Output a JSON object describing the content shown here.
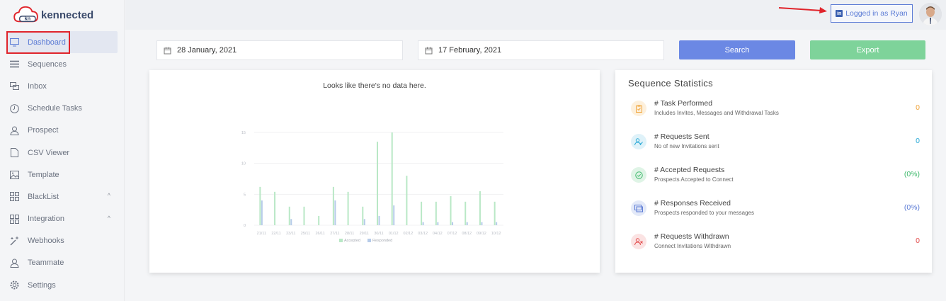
{
  "brand": {
    "name": "kennected",
    "logo_text": "kn"
  },
  "sidebar": {
    "items": [
      {
        "label": "Dashboard",
        "icon": "monitor-icon",
        "active": true
      },
      {
        "label": "Sequences",
        "icon": "list-icon"
      },
      {
        "label": "Inbox",
        "icon": "chat-icon"
      },
      {
        "label": "Schedule Tasks",
        "icon": "clock-icon"
      },
      {
        "label": "Prospect",
        "icon": "user-icon"
      },
      {
        "label": "CSV Viewer",
        "icon": "file-icon"
      },
      {
        "label": "Template",
        "icon": "image-icon"
      },
      {
        "label": "BlackList",
        "icon": "grid-icon",
        "chevron": "^"
      },
      {
        "label": "Integration",
        "icon": "grid-icon",
        "chevron": "^"
      },
      {
        "label": "Webhooks",
        "icon": "magic-icon"
      },
      {
        "label": "Teammate",
        "icon": "user-icon"
      },
      {
        "label": "Settings",
        "icon": "gear-icon"
      }
    ]
  },
  "header": {
    "login_label": "Logged in as Ryan",
    "login_icon": "in"
  },
  "filters": {
    "start_date": "28 January, 2021",
    "end_date": "17 February, 2021",
    "search_label": "Search",
    "export_label": "Export"
  },
  "chart": {
    "empty_message": "Looks like there's no data here."
  },
  "chart_data": {
    "type": "bar",
    "categories": [
      "21/11",
      "22/11",
      "23/11",
      "25/11",
      "26/11",
      "27/11",
      "28/11",
      "29/11",
      "30/11",
      "01/12",
      "02/12",
      "03/12",
      "04/12",
      "07/12",
      "08/12",
      "09/12",
      "10/12"
    ],
    "series": [
      {
        "name": "Accepted",
        "values": [
          6.2,
          5.4,
          3,
          3,
          1.5,
          6.2,
          5.4,
          3,
          13.5,
          15,
          8,
          3.8,
          3.8,
          4.7,
          3.8,
          5.5,
          3.8
        ]
      },
      {
        "name": "Responded",
        "values": [
          4,
          0,
          1,
          0,
          0,
          4,
          0,
          1,
          1.5,
          3.2,
          0,
          0.5,
          0.5,
          0.5,
          0.5,
          0.5,
          0.5
        ]
      }
    ],
    "yticks": [
      "0",
      "5",
      "10",
      "15"
    ],
    "ylim": [
      0,
      15
    ],
    "legend": "bottom",
    "colors": {
      "Accepted": "#b9e8c6",
      "Responded": "#b6cbe9"
    }
  },
  "stats": {
    "title": "Sequence Statistics",
    "rows": [
      {
        "label": "# Task Performed",
        "sub": "Includes Invites, Messages and Withdrawal Tasks",
        "value": "0",
        "color": "#f0a43a",
        "bg": "#fdf0dc",
        "icon": "clipboard-icon"
      },
      {
        "label": "# Requests Sent",
        "sub": "No of new Invitations sent",
        "value": "0",
        "color": "#29a9d6",
        "bg": "#dff2f9",
        "icon": "user-check-icon"
      },
      {
        "label": "# Accepted Requests",
        "sub": "Prospects Accepted to Connect",
        "value": "(0%)",
        "color": "#3cb86a",
        "bg": "#dff4e6",
        "icon": "check-circle-icon"
      },
      {
        "label": "# Responses Received",
        "sub": "Prospects responded to your messages",
        "value": "(0%)",
        "color": "#5b7bd5",
        "bg": "#e3e9f8",
        "icon": "message-icon"
      },
      {
        "label": "# Requests Withdrawn",
        "sub": "Connect Invitations Withdrawn",
        "value": "0",
        "color": "#e24b4b",
        "bg": "#fbe3e3",
        "icon": "user-x-icon"
      }
    ]
  }
}
